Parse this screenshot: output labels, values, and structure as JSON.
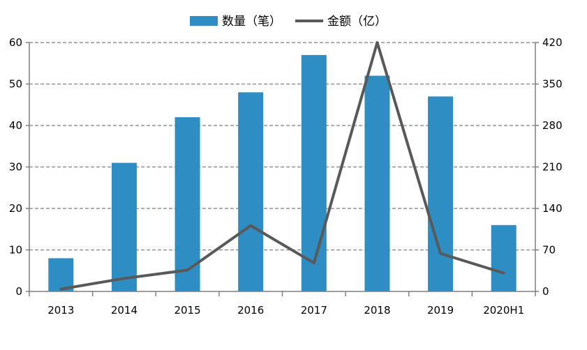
{
  "chart_data": {
    "type": "bar+line",
    "categories": [
      "2013",
      "2014",
      "2015",
      "2016",
      "2017",
      "2018",
      "2019",
      "2020H1"
    ],
    "series": [
      {
        "name": "数量（笔）",
        "type": "bar",
        "axis": "left",
        "color": "#2E8EC4",
        "values": [
          8,
          31,
          42,
          48,
          57,
          52,
          47,
          16
        ]
      },
      {
        "name": "金额（亿）",
        "type": "line",
        "axis": "right",
        "color": "#595959",
        "values": [
          4,
          22,
          36,
          111,
          48,
          420,
          64,
          31
        ]
      }
    ],
    "y_left": {
      "min": 0,
      "max": 60,
      "ticks": [
        "0",
        "10",
        "20",
        "30",
        "40",
        "50",
        "60"
      ]
    },
    "y_right": {
      "min": 0,
      "max": 420,
      "ticks": [
        "0",
        "70",
        "140",
        "210",
        "280",
        "350",
        "420"
      ]
    },
    "grid": "horizontal-dashed",
    "legend": "top-center"
  }
}
